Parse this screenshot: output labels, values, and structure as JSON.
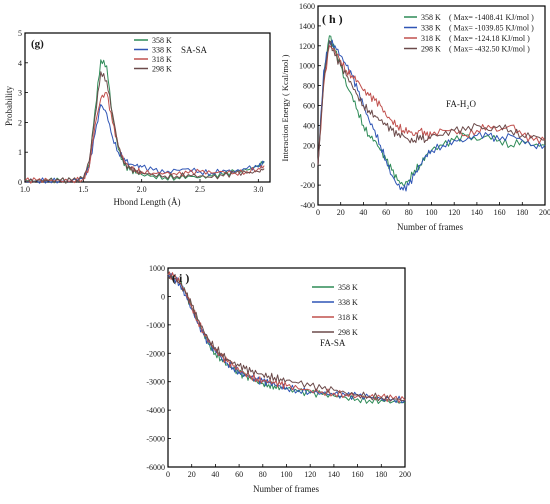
{
  "chart_data": [
    {
      "type": "line",
      "panel": "(g)",
      "annotation": "SA-SA",
      "xlabel": "Hbond Length (Å)",
      "ylabel": "Probability",
      "xlim": [
        1.0,
        3.1
      ],
      "ylim": [
        0,
        5
      ],
      "x_ticks": [
        "1.0",
        "1.5",
        "2.0",
        "2.5",
        "3.0"
      ],
      "y_ticks": [
        "0",
        "1",
        "2",
        "3",
        "4",
        "5"
      ],
      "legend_position": "top-center",
      "x": [
        1.0,
        1.1,
        1.2,
        1.3,
        1.4,
        1.5,
        1.55,
        1.6,
        1.65,
        1.7,
        1.75,
        1.8,
        1.85,
        1.9,
        1.95,
        2.0,
        2.1,
        2.2,
        2.3,
        2.4,
        2.5,
        2.6,
        2.7,
        2.8,
        2.9,
        3.0,
        3.05
      ],
      "series": [
        {
          "name": "358 K",
          "color": "#2e8b57",
          "values": [
            0.05,
            0.05,
            0.05,
            0.05,
            0.05,
            0.1,
            0.6,
            2.4,
            4.1,
            3.9,
            2.2,
            1.1,
            0.55,
            0.4,
            0.3,
            0.25,
            0.2,
            0.15,
            0.15,
            0.2,
            0.15,
            0.2,
            0.25,
            0.35,
            0.4,
            0.55,
            0.7
          ]
        },
        {
          "name": "338 K",
          "color": "#2f55b5",
          "values": [
            0.05,
            0.05,
            0.05,
            0.05,
            0.05,
            0.12,
            0.5,
            1.6,
            2.6,
            2.3,
            1.5,
            1.0,
            0.8,
            0.6,
            0.55,
            0.5,
            0.4,
            0.3,
            0.4,
            0.45,
            0.35,
            0.3,
            0.4,
            0.35,
            0.45,
            0.5,
            0.65
          ]
        },
        {
          "name": "318 K",
          "color": "#c0504d",
          "values": [
            0.05,
            0.05,
            0.05,
            0.05,
            0.05,
            0.1,
            0.5,
            1.9,
            2.8,
            3.0,
            2.0,
            1.2,
            0.7,
            0.5,
            0.4,
            0.35,
            0.3,
            0.3,
            0.25,
            0.3,
            0.35,
            0.3,
            0.35,
            0.3,
            0.35,
            0.45,
            0.55
          ]
        },
        {
          "name": "298 K",
          "color": "#6b4a4a",
          "values": [
            0.05,
            0.05,
            0.05,
            0.05,
            0.05,
            0.12,
            0.7,
            2.2,
            3.7,
            3.4,
            2.3,
            1.2,
            0.6,
            0.45,
            0.35,
            0.3,
            0.25,
            0.2,
            0.2,
            0.25,
            0.2,
            0.15,
            0.2,
            0.3,
            0.3,
            0.35,
            0.45
          ]
        }
      ]
    },
    {
      "type": "line",
      "panel": "( h )",
      "annotation": "FA-H₂O",
      "xlabel": "Number of frames",
      "ylabel": "Interaction Energy ( Kcal/mol )",
      "xlim": [
        0,
        200
      ],
      "ylim": [
        -400,
        1600
      ],
      "x_ticks": [
        "0",
        "20",
        "40",
        "60",
        "80",
        "100",
        "120",
        "140",
        "160",
        "180",
        "200"
      ],
      "y_ticks": [
        "-400",
        "-200",
        "0",
        "200",
        "400",
        "600",
        "800",
        "1000",
        "1200",
        "1400",
        "1600"
      ],
      "legend_position": "top-right",
      "x": [
        0,
        5,
        10,
        15,
        20,
        25,
        30,
        35,
        40,
        45,
        50,
        55,
        60,
        65,
        70,
        75,
        80,
        85,
        90,
        95,
        100,
        110,
        120,
        130,
        140,
        150,
        160,
        170,
        180,
        190,
        200
      ],
      "series": [
        {
          "name": "358 K",
          "max_label": "( Max= -1408.41 KJ/mol )",
          "color": "#2e8b57",
          "values": [
            0,
            900,
            1300,
            1150,
            1000,
            800,
            700,
            550,
            400,
            300,
            250,
            150,
            50,
            -50,
            -150,
            -200,
            -150,
            -50,
            0,
            100,
            150,
            200,
            250,
            300,
            250,
            300,
            250,
            200,
            250,
            200,
            200
          ]
        },
        {
          "name": "338 K",
          "max_label": "( Max= -1039.85 KJ/mol )",
          "color": "#2f55b5",
          "values": [
            0,
            950,
            1250,
            1200,
            1100,
            1000,
            900,
            750,
            600,
            450,
            350,
            200,
            50,
            -100,
            -200,
            -250,
            -200,
            -100,
            0,
            100,
            150,
            200,
            250,
            250,
            300,
            300,
            250,
            300,
            250,
            200,
            200
          ]
        },
        {
          "name": "318 K",
          "max_label": "( Max= -124.18   KJ/mol )",
          "color": "#c0504d",
          "values": [
            0,
            800,
            1200,
            1150,
            1050,
            950,
            900,
            850,
            750,
            700,
            650,
            600,
            500,
            450,
            400,
            350,
            350,
            300,
            350,
            300,
            300,
            350,
            350,
            300,
            350,
            400,
            350,
            400,
            300,
            250,
            250
          ]
        },
        {
          "name": "298 K",
          "max_label": "( Max= -432.50   KJ/mol )",
          "color": "#6b4a4a",
          "values": [
            0,
            850,
            1250,
            1100,
            1000,
            900,
            800,
            700,
            600,
            550,
            500,
            450,
            400,
            350,
            300,
            300,
            250,
            250,
            300,
            250,
            300,
            300,
            350,
            350,
            400,
            350,
            400,
            350,
            300,
            300,
            250
          ]
        }
      ]
    },
    {
      "type": "line",
      "panel": "( i )",
      "annotation": "FA-SA",
      "xlabel": "Number of frames",
      "ylabel": "",
      "xlim": [
        0,
        200
      ],
      "ylim": [
        -6000,
        1000
      ],
      "x_ticks": [
        "0",
        "20",
        "40",
        "60",
        "80",
        "100",
        "120",
        "140",
        "160",
        "180",
        "200"
      ],
      "y_ticks": [
        "-6000",
        "-5000",
        "-4000",
        "-3000",
        "-2000",
        "-1000",
        "0",
        "1000"
      ],
      "legend_position": "top-right",
      "x": [
        0,
        5,
        10,
        15,
        20,
        25,
        30,
        35,
        40,
        45,
        50,
        55,
        60,
        65,
        70,
        75,
        80,
        85,
        90,
        95,
        100,
        110,
        120,
        130,
        140,
        150,
        160,
        170,
        180,
        190,
        200
      ],
      "series": [
        {
          "name": "358 K",
          "color": "#2e8b57",
          "values": [
            800,
            700,
            500,
            100,
            -400,
            -900,
            -1300,
            -1700,
            -2000,
            -2200,
            -2400,
            -2550,
            -2700,
            -2800,
            -2900,
            -3000,
            -3050,
            -3100,
            -3150,
            -3200,
            -3250,
            -3350,
            -3400,
            -3450,
            -3500,
            -3550,
            -3600,
            -3650,
            -3650,
            -3700,
            -3750
          ]
        },
        {
          "name": "338 K",
          "color": "#2f55b5",
          "values": [
            800,
            650,
            450,
            50,
            -450,
            -950,
            -1350,
            -1700,
            -1950,
            -2150,
            -2350,
            -2500,
            -2650,
            -2750,
            -2850,
            -2950,
            -3000,
            -3050,
            -3100,
            -3150,
            -3200,
            -3300,
            -3350,
            -3400,
            -3450,
            -3500,
            -3500,
            -3550,
            -3600,
            -3600,
            -3650
          ]
        },
        {
          "name": "318 K",
          "color": "#c0504d",
          "values": [
            750,
            700,
            500,
            150,
            -350,
            -850,
            -1250,
            -1600,
            -1900,
            -2100,
            -2300,
            -2450,
            -2600,
            -2700,
            -2800,
            -2900,
            -2950,
            -3000,
            -3050,
            -3100,
            -3150,
            -3250,
            -3300,
            -3350,
            -3400,
            -3450,
            -3500,
            -3550,
            -3550,
            -3600,
            -3650
          ]
        },
        {
          "name": "298 K",
          "color": "#6b4a4a",
          "values": [
            700,
            650,
            450,
            100,
            -300,
            -800,
            -1200,
            -1550,
            -1800,
            -2000,
            -2200,
            -2350,
            -2450,
            -2550,
            -2650,
            -2700,
            -2750,
            -2800,
            -2850,
            -2900,
            -2950,
            -3050,
            -3150,
            -3250,
            -3300,
            -3400,
            -3450,
            -3500,
            -3550,
            -3600,
            -3650
          ]
        }
      ]
    }
  ]
}
